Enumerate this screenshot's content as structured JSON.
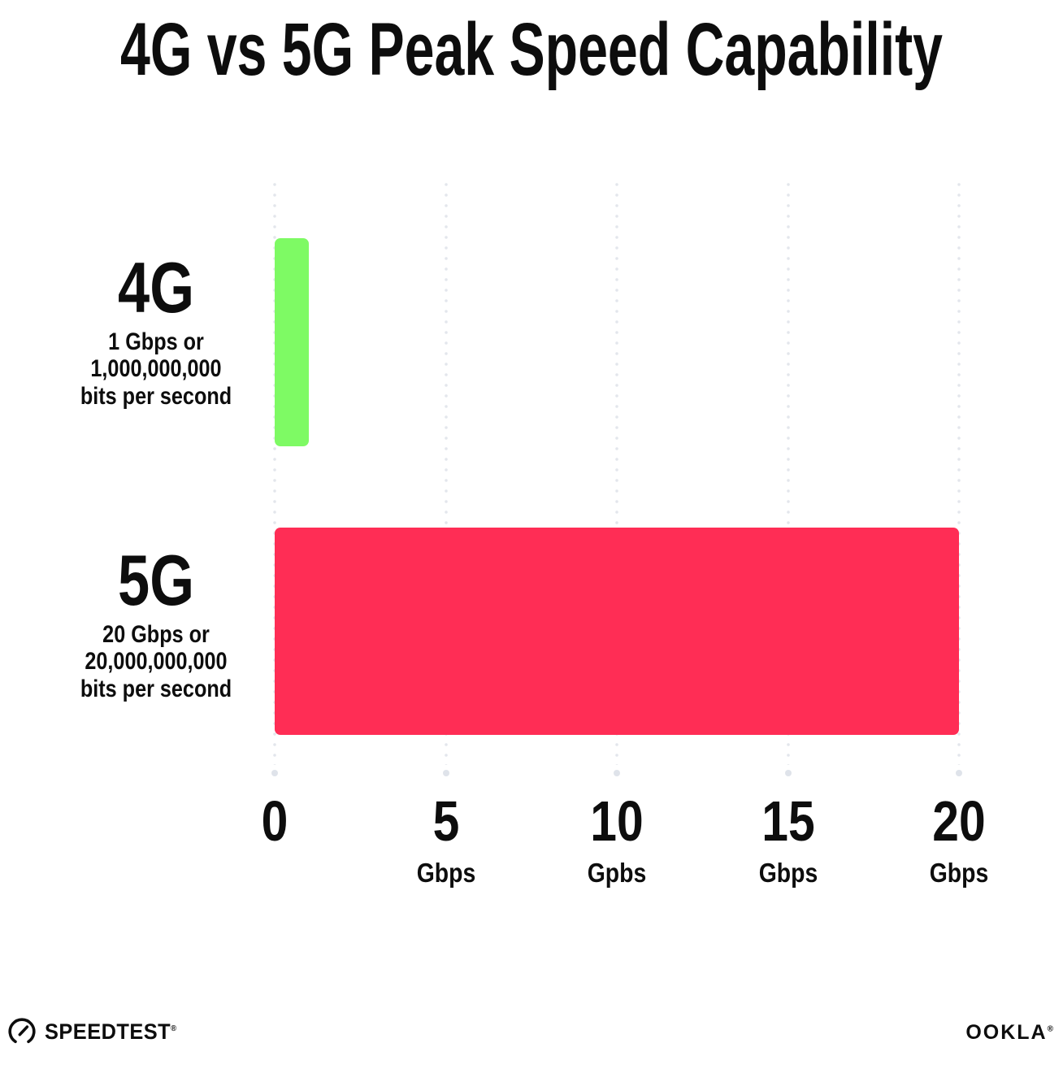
{
  "title": "4G vs 5G Peak Speed Capability",
  "chart_data": {
    "type": "bar",
    "orientation": "horizontal",
    "title": "4G vs 5G Peak Speed Capability",
    "categories": [
      "4G",
      "5G"
    ],
    "values": [
      1,
      20
    ],
    "value_unit": "Gbps",
    "xlim": [
      0,
      20
    ],
    "grid": "dotted vertical gridlines at each x tick, ending in a larger dot",
    "legend": "none",
    "rows": [
      {
        "label": "4G",
        "value": 1,
        "color": "#7EFA64",
        "sublabel_lines": [
          "1 Gbps or",
          "1,000,000,000",
          "bits per second"
        ]
      },
      {
        "label": "5G",
        "value": 20,
        "color": "#FF2D55",
        "sublabel_lines": [
          "20 Gbps or",
          "20,000,000,000",
          "bits per second"
        ]
      }
    ],
    "x_ticks": [
      {
        "value": 0,
        "label": "0",
        "unit": ""
      },
      {
        "value": 5,
        "label": "5",
        "unit": "Gbps"
      },
      {
        "value": 10,
        "label": "10",
        "unit": "Gpbs"
      },
      {
        "value": 15,
        "label": "15",
        "unit": "Gbps"
      },
      {
        "value": 20,
        "label": "20",
        "unit": "Gbps"
      }
    ]
  },
  "footer": {
    "speedtest_label": "SPEEDTEST",
    "speedtest_mark": "®",
    "ookla_label": "OOKLA",
    "ookla_mark": "®"
  },
  "colors": {
    "bar_4g": "#7EFA64",
    "bar_5g": "#FF2D55",
    "grid_dot": "#E3E6EC",
    "grid_end_dot": "#DFE3EA",
    "text": "#0D0D0D",
    "background": "#FFFFFF"
  }
}
